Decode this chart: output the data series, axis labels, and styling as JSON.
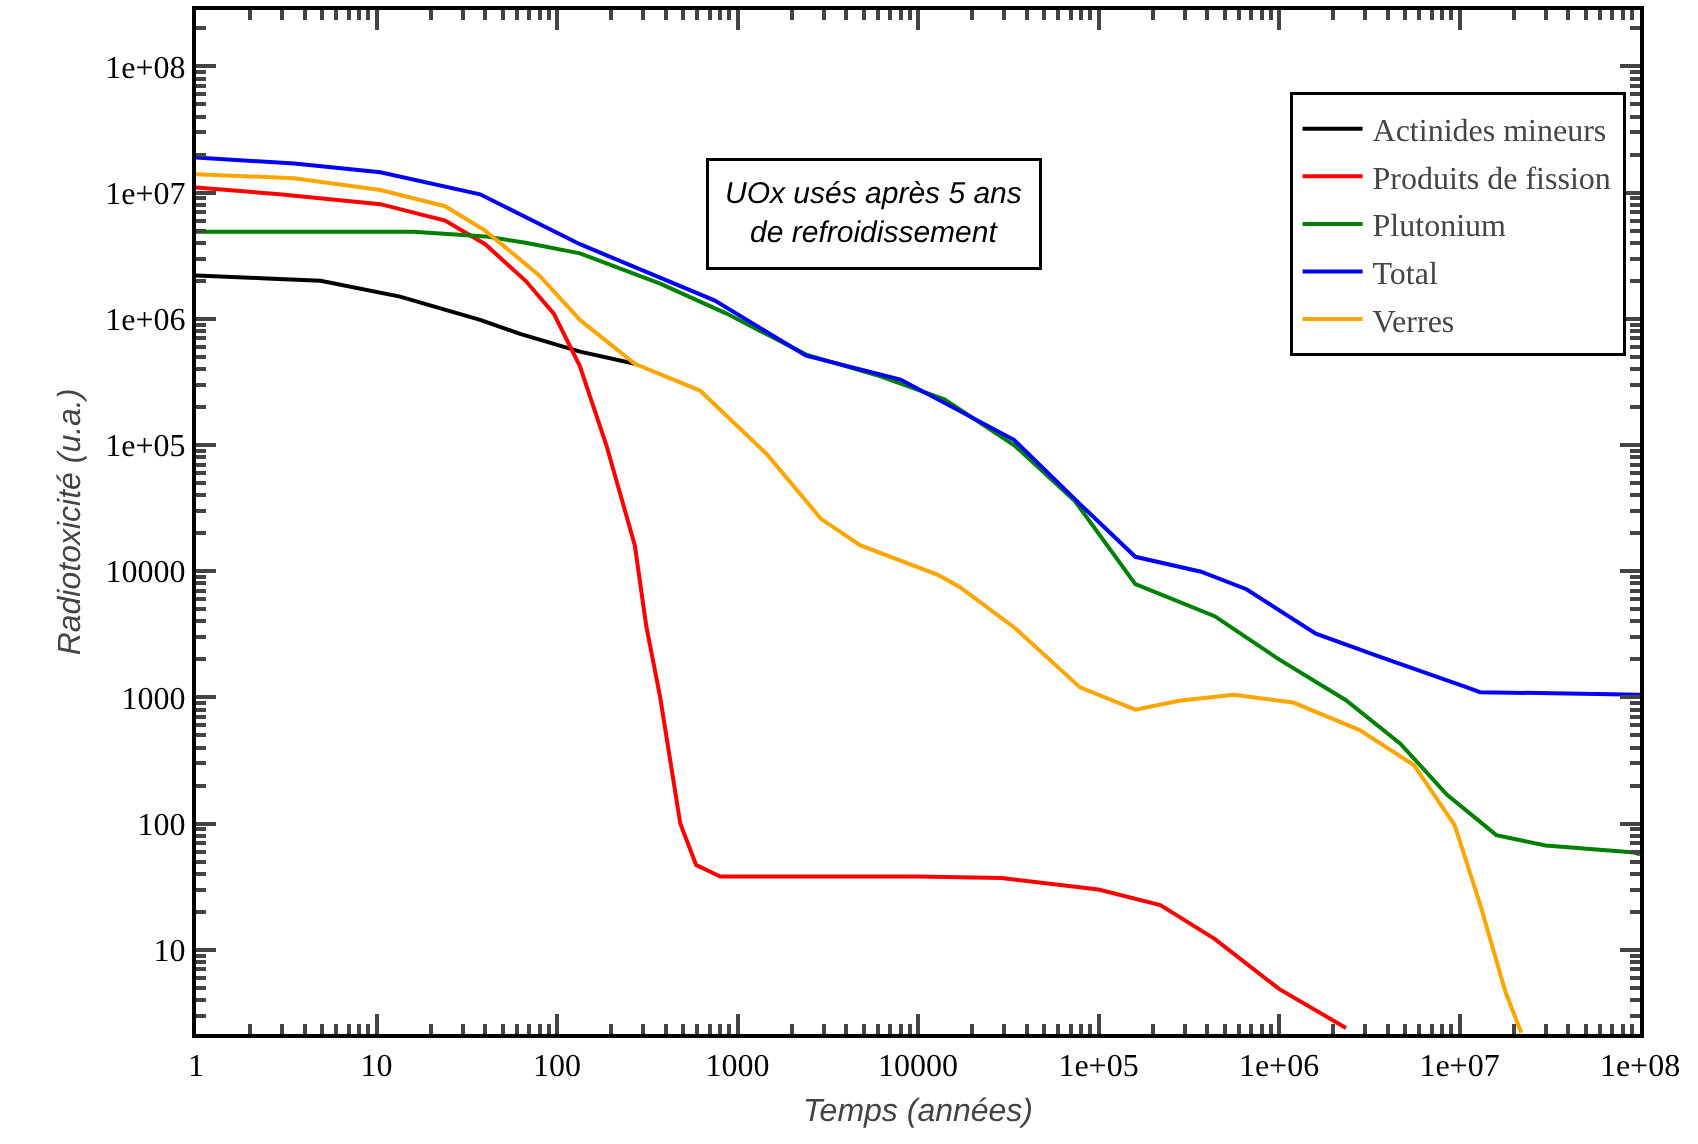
{
  "chart_data": {
    "type": "line",
    "xlabel": "Temps (années)",
    "ylabel": "Radiotoxicité (u.a.)",
    "log": "xy",
    "grid": false,
    "legend": "top right",
    "marker": "none",
    "line_style": "solid",
    "annotations": [
      "UOx usés après 5 ans\nde refroidissement"
    ],
    "xlim": [
      1,
      100000000
    ],
    "ylim": [
      2.15,
      280000000
    ],
    "xticks": [
      1,
      10,
      100,
      1000,
      10000,
      {
        "value": 100000,
        "label": "1e+05"
      },
      {
        "value": 1000000,
        "label": "1e+06"
      },
      {
        "value": 10000000,
        "label": "1e+07"
      },
      {
        "value": 100000000,
        "label": "1e+08"
      }
    ],
    "yticks": [
      10,
      100,
      1000,
      10000,
      {
        "value": 100000,
        "label": "1e+05"
      },
      {
        "value": 1000000,
        "label": "1e+06"
      },
      {
        "value": 10000000,
        "label": "1e+07"
      },
      {
        "value": 100000000,
        "label": "1e+08"
      }
    ],
    "series": [
      {
        "name": "Actinides mineurs",
        "color": "#000000",
        "x": [
          1,
          2.3,
          4.9,
          13.5,
          37.5,
          62.5,
          134,
          270
        ],
        "values": [
          2200000,
          2100000,
          2000000,
          1500000,
          980000,
          760000,
          550000,
          440000
        ]
      },
      {
        "name": "Produits de fission",
        "color": "#ff0000",
        "x": [
          1,
          2.9,
          10.5,
          24,
          40,
          67,
          96,
          134,
          188,
          270,
          312,
          373,
          482,
          590,
          803,
          10000,
          29000,
          100000,
          220000,
          440000,
          1000000,
          2350000
        ],
        "values": [
          11000000,
          9700000,
          8100000,
          6000000,
          3900000,
          2000000,
          1100000,
          420000,
          99000,
          16000,
          3700,
          1000,
          100,
          47,
          38,
          38,
          37,
          30,
          22.6,
          12.2,
          4.9,
          2.4
        ]
      },
      {
        "name": "Plutonium",
        "color": "#008000",
        "x": [
          1,
          16,
          40,
          67,
          134,
          373,
          870,
          2400,
          6200,
          14000,
          34000,
          74000,
          160000,
          440000,
          1000000,
          2350000,
          4700000,
          8500000,
          16000000,
          30000000,
          93000000,
          100000000
        ],
        "values": [
          4900000,
          4900000,
          4500000,
          4000000,
          3300000,
          1900000,
          1100000,
          520000,
          350000,
          230000,
          100000,
          36000,
          7900,
          4400,
          2000,
          950,
          430,
          170,
          81,
          67,
          59,
          57
        ]
      },
      {
        "name": "Total",
        "color": "#0000ff",
        "x": [
          1,
          3.5,
          10.5,
          37.5,
          134,
          745,
          2400,
          8000,
          34000,
          79000,
          160000,
          370000,
          660000,
          1600000,
          3600000,
          11000000,
          13000000,
          100000000
        ],
        "values": [
          19000000,
          17000000,
          14500000,
          9700000,
          3900000,
          1400000,
          510000,
          330000,
          110000,
          34000,
          13000,
          9900,
          7200,
          3200,
          2100,
          1200,
          1100,
          1050
        ]
      },
      {
        "name": "Verres",
        "color": "#ffa500",
        "x": [
          1,
          3.5,
          10.5,
          24,
          40,
          80,
          134,
          270,
          620,
          1450,
          2900,
          4800,
          13000,
          17000,
          34000,
          79000,
          160000,
          280000,
          560000,
          1200000,
          2800000,
          5600000,
          9400000,
          13000000,
          18000000,
          22000000
        ],
        "values": [
          14000000,
          13000000,
          10500000,
          7800000,
          5000000,
          2200000,
          980000,
          440000,
          270000,
          85000,
          26000,
          16000,
          9300,
          7500,
          3600,
          1200,
          800,
          940,
          1050,
          910,
          550,
          290,
          97,
          23,
          4.6,
          2.2
        ]
      }
    ]
  }
}
